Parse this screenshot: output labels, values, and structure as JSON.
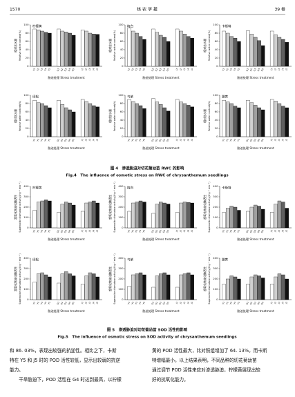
{
  "header": {
    "page": "1570",
    "journal": "核 农 学 报",
    "volume": "39 卷"
  },
  "figures": [
    {
      "caption_zh": "图 4　渗透胁迫对切花菊幼苗 RWC 的影响",
      "caption_en": "Fig.4　The influence of osmotic stress on RWC of chrysanthemum seedlings",
      "y_label_zh": "相对含水量",
      "y_label_en": "Relative water content(%)",
      "x_label": "胁迫处理 Stress treatment",
      "categories": [
        "Y1",
        "Y2",
        "Y3",
        "Y4",
        "Y5",
        "G1",
        "G2",
        "G3",
        "G4",
        "G5",
        "J1",
        "J2",
        "J3",
        "J4",
        "J5"
      ],
      "bar_colors": [
        "#ffffff",
        "#d0d0d0",
        "#a0a0a0",
        "#606060",
        "#111111"
      ],
      "ylim": [
        0,
        100
      ],
      "yticks": [
        0,
        20,
        40,
        60,
        80,
        100
      ],
      "panels": [
        {
          "name": "柠檬黄",
          "values": [
            90,
            88,
            85,
            82,
            80,
            90,
            85,
            83,
            80,
            75,
            88,
            85,
            80,
            78,
            77
          ]
        },
        {
          "name": "梅白",
          "values": [
            92,
            85,
            80,
            72,
            65,
            90,
            82,
            75,
            70,
            60,
            90,
            85,
            78,
            72,
            68
          ]
        },
        {
          "name": "卡斯特",
          "values": [
            85,
            80,
            72,
            68,
            60,
            86,
            78,
            70,
            62,
            50,
            85,
            76,
            70,
            65,
            58
          ]
        },
        {
          "name": "绿松",
          "values": [
            88,
            82,
            80,
            75,
            70,
            88,
            78,
            70,
            65,
            60,
            90,
            85,
            80,
            75,
            72
          ]
        },
        {
          "name": "乌紫",
          "values": [
            90,
            85,
            80,
            75,
            68,
            92,
            84,
            78,
            70,
            62,
            90,
            84,
            80,
            76,
            72
          ]
        },
        {
          "name": "腊黄",
          "values": [
            88,
            84,
            80,
            74,
            70,
            88,
            82,
            76,
            70,
            65,
            90,
            86,
            80,
            74,
            70
          ]
        }
      ]
    },
    {
      "caption_zh": "图 5　渗透胁迫对切花菊幼苗 SOD 活性的影响",
      "caption_en": "Fig.5　The influence of osmotic stress on SOD activity of chrysanthemum seedlings",
      "y_label_zh": "超氧化物歧化酶活性",
      "y_label_en": "Superoxide dismutase activity(U·g⁻¹ min⁻¹)",
      "x_label": "胁迫处理 Stress treatment",
      "categories": [
        "Y1",
        "Y2",
        "Y3",
        "Y4",
        "Y5",
        "G1",
        "G2",
        "G3",
        "G4",
        "G5",
        "J1",
        "J2",
        "J3",
        "J4",
        "J5"
      ],
      "bar_colors": [
        "#ffffff",
        "#d0d0d0",
        "#a0a0a0",
        "#606060",
        "#111111"
      ],
      "ylim": [
        0,
        400
      ],
      "yticks": [
        0,
        100,
        200,
        300,
        400
      ],
      "panels": [
        {
          "name": "柠檬黄",
          "values": [
            170,
            250,
            260,
            270,
            260,
            150,
            230,
            250,
            240,
            220,
            160,
            240,
            250,
            260,
            240
          ]
        },
        {
          "name": "梅白",
          "values": [
            160,
            240,
            250,
            260,
            250,
            140,
            230,
            250,
            240,
            230,
            150,
            240,
            250,
            245,
            240
          ]
        },
        {
          "name": "卡斯特",
          "values": [
            150,
            190,
            210,
            200,
            170,
            160,
            200,
            220,
            210,
            180,
            150,
            230,
            260,
            250,
            190
          ]
        },
        {
          "name": "绿松",
          "values": [
            170,
            250,
            260,
            240,
            220,
            160,
            250,
            270,
            250,
            230,
            150,
            230,
            260,
            250,
            220
          ]
        },
        {
          "name": "乌紫",
          "values": [
            130,
            240,
            250,
            260,
            240,
            120,
            230,
            250,
            260,
            240,
            120,
            240,
            250,
            260,
            240
          ]
        },
        {
          "name": "腊黄",
          "values": [
            150,
            200,
            230,
            220,
            200,
            150,
            220,
            240,
            230,
            210,
            150,
            220,
            250,
            240,
            200
          ]
        }
      ]
    }
  ],
  "body": {
    "left": [
      "和 86. 03%，表现出较强的抗逆性。相比之下，卡斯",
      "特在 Y5 和 J5 时的 POD 活性较低，显示出较弱的抗逆",
      "能力。",
      "　　干旱胁迫下，POD 活性在 G4 时达到最高，以柠檬"
    ],
    "right": [
      "黄的 POD 活性最大，比对照组增加了 64. 13%，而卡斯",
      "特增幅最小。以上结果表明，不同品种的切花菊幼苗",
      "通过调节 POD 活性来应对渗透胁迫，柠檬黄展现出较",
      "好的抗氧化能力。"
    ]
  }
}
